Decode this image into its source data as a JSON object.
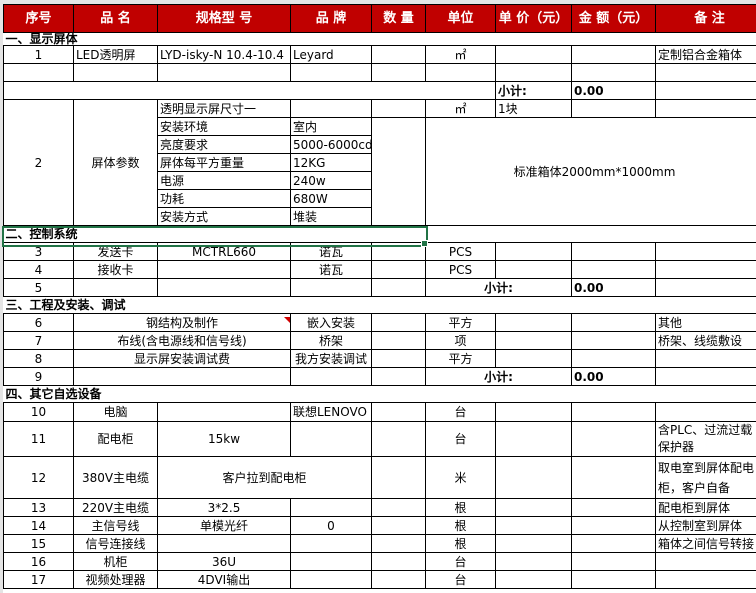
{
  "header": [
    "序号",
    "品 名",
    "规格型 号",
    "品 牌",
    "数 量",
    "单位",
    "单 价（元）",
    "金 额（元）",
    "备 注"
  ],
  "sections": [
    "一、显示屏体",
    "二、控制系统",
    "三、工程及安装、调试",
    "四、其它自选设备"
  ],
  "subtotal": {
    "label": "小计:",
    "value": "0.00"
  },
  "r1": {
    "no": "1",
    "name": "LED透明屏",
    "model": "LYD-isky-N 10.4-10.4",
    "brand": "Leyard",
    "unit": "㎡",
    "remark": "定制铝合金箱体"
  },
  "r2": {
    "no": "2",
    "name": "屏体参数",
    "params": [
      {
        "k": "透明显示屏尺寸一",
        "v": ""
      },
      {
        "k": "安装环境",
        "v": "室内"
      },
      {
        "k": "亮度要求",
        "v": "5000-6000cd"
      },
      {
        "k": "屏体每平方重量",
        "v": "12KG"
      },
      {
        "k": "电源",
        "v": "240w"
      },
      {
        "k": "功耗",
        "v": "680W"
      },
      {
        "k": "安装方式",
        "v": "堆装"
      }
    ],
    "unit": "㎡",
    "price": "1块",
    "note": "标准箱体2000mm*1000mm"
  },
  "r3": {
    "no": "3",
    "name": "发送卡",
    "model": "MCTRL660",
    "brand": "诺瓦",
    "unit": "PCS"
  },
  "r4": {
    "no": "4",
    "name": "接收卡",
    "brand": "诺瓦",
    "unit": "PCS"
  },
  "r5": {
    "no": "5"
  },
  "r6": {
    "no": "6",
    "name": "钢结构及制作",
    "brand": "嵌入安装",
    "unit": "平方",
    "remark": "其他"
  },
  "r7": {
    "no": "7",
    "name": "布线(含电源线和信号线)",
    "brand": "桥架",
    "unit": "项",
    "remark": "桥架、线缆敷设"
  },
  "r8": {
    "no": "8",
    "name": "显示屏安装调试费",
    "brand": "我方安装调试",
    "unit": "平方"
  },
  "r9": {
    "no": "9"
  },
  "r10": {
    "no": "10",
    "name": "电脑",
    "brand": "联想LENOVO",
    "unit": "台"
  },
  "r11": {
    "no": "11",
    "name": "配电柜",
    "model": "15kw",
    "unit": "台",
    "remark": "含PLC、过流过载保护器"
  },
  "r12": {
    "no": "12",
    "name": "380V主电缆",
    "model": "客户拉到配电柜",
    "unit": "米",
    "remark": "取电室到屏体配电柜，客户自备"
  },
  "r13": {
    "no": "13",
    "name": "220V主电缆",
    "model": "3*2.5",
    "unit": "根",
    "remark": "配电柜到屏体"
  },
  "r14": {
    "no": "14",
    "name": "主信号线",
    "model": "单模光纤",
    "brand": "0",
    "unit": "根",
    "remark": "从控制室到屏体"
  },
  "r15": {
    "no": "15",
    "name": "信号连接线",
    "unit": "根",
    "remark": "箱体之间信号转接"
  },
  "r16": {
    "no": "16",
    "name": "机柜",
    "model": "36U",
    "unit": "台"
  },
  "r17": {
    "no": "17",
    "name": "视频处理器",
    "model": "4DVI输出",
    "unit": "台"
  }
}
